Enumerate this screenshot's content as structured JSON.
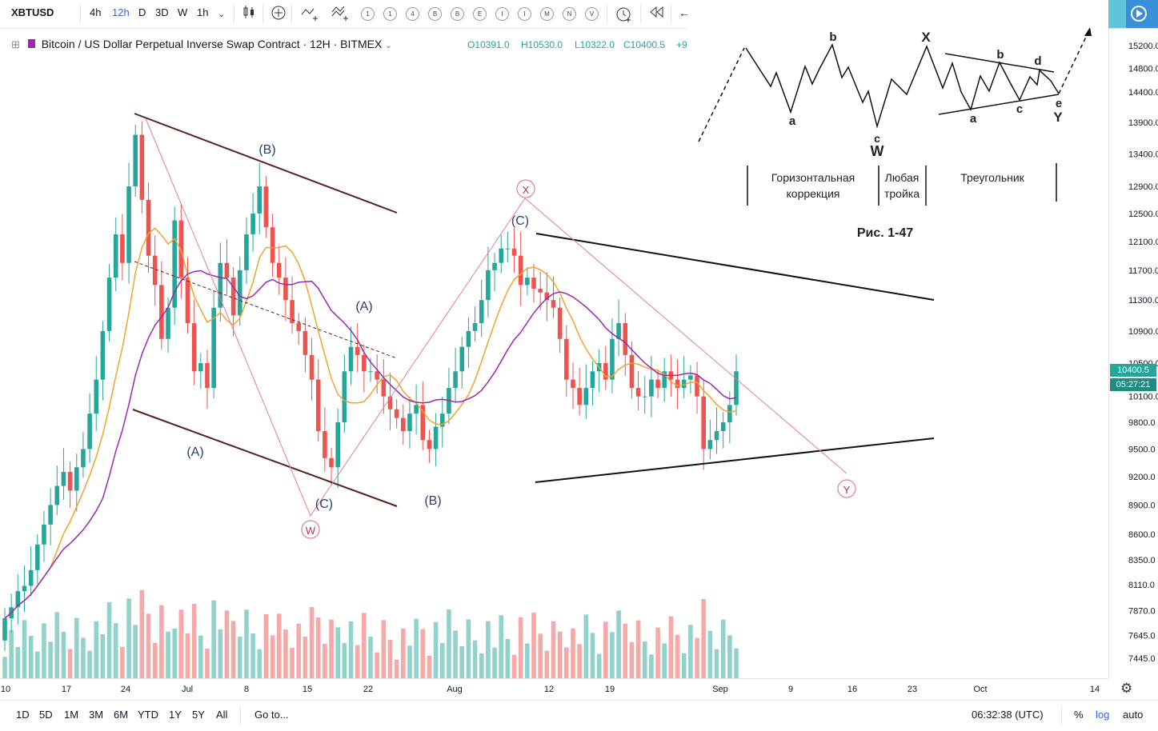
{
  "toolbar": {
    "symbol": "XBTUSD",
    "timeframes": [
      "4h",
      "12h",
      "D",
      "3D",
      "W",
      "1h"
    ],
    "active_timeframe": "12h",
    "pattern_buttons": [
      "1",
      "1",
      "4",
      "B",
      "B",
      "E",
      "I",
      "M",
      "N",
      "V"
    ],
    "icons": [
      "chevron-down-icon",
      "candles-icon",
      "add-indicator-icon",
      "compare-icon",
      "templates-icon",
      "alert-icon",
      "replay-icon",
      "back-icon",
      "play-icon"
    ]
  },
  "legend": {
    "title": "Bitcoin / US Dollar Perpetual Inverse Swap Contract · 12H · BITMEX",
    "open": "O10391.0",
    "high": "H10530.0",
    "low": "L10322.0",
    "close": "C10400.5",
    "change": "+9"
  },
  "price_badge": {
    "price": "10400.5",
    "countdown": "05:27:21"
  },
  "bottom": {
    "ranges": [
      "1D",
      "5D",
      "1M",
      "3M",
      "6M",
      "YTD",
      "1Y",
      "5Y",
      "All"
    ],
    "goto": "Go to...",
    "time": "06:32:38 (UTC)",
    "percent": "%",
    "log": "log",
    "auto": "auto"
  },
  "inset": {
    "labels_top": [
      "a",
      "b",
      "X",
      "b",
      "d",
      "c",
      "W",
      "a",
      "c",
      "e",
      "Y"
    ],
    "section1": [
      "Горизонтальная",
      "коррекция"
    ],
    "section2": [
      "Любая",
      "тройка"
    ],
    "section3": "Треугольник",
    "caption": "Рис. 1-47"
  },
  "annotations": [
    "(B)",
    "(A)",
    "(C)",
    "W",
    "(A)",
    "(B)",
    "(C)",
    "X",
    "Y"
  ],
  "colors": {
    "up": "#26a69a",
    "down": "#ef5350",
    "ma_fast": "#f0a22e",
    "ma_slow": "#9c27b0",
    "channel": "#5d1f1a",
    "pink": "#e47aa0"
  },
  "chart_data": {
    "type": "candlestick",
    "title": "Bitcoin / US Dollar Perpetual Inverse Swap Contract · 12H · BITMEX",
    "x_ticks": [
      "10",
      "17",
      "24",
      "Jul",
      "8",
      "15",
      "22",
      "Aug",
      "12",
      "19",
      "Sep",
      "9",
      "16",
      "23",
      "Oct",
      "14"
    ],
    "y_ticks": [
      15200,
      14800,
      14400,
      13900,
      13400,
      12900,
      12500,
      12100,
      11700,
      11300,
      10900,
      10500,
      10100,
      9800,
      9500,
      9200,
      8900,
      8600,
      8350,
      8110,
      7870,
      7645,
      7445
    ],
    "y_scale": "log",
    "closes": [
      7800,
      7900,
      8050,
      8100,
      8250,
      8500,
      8700,
      8900,
      9100,
      9250,
      9050,
      9300,
      9500,
      9900,
      10300,
      10900,
      11600,
      12200,
      11800,
      12900,
      13700,
      12700,
      11900,
      11500,
      10800,
      11200,
      12400,
      11600,
      11000,
      10400,
      10500,
      10200,
      11200,
      11800,
      11600,
      11100,
      11700,
      12200,
      12500,
      12900,
      12300,
      11800,
      11600,
      11300,
      11000,
      10900,
      10600,
      10300,
      9700,
      9400,
      9300,
      9800,
      10400,
      10700,
      10600,
      10400,
      10400,
      10300,
      10100,
      9950,
      9850,
      9700,
      9900,
      10000,
      9600,
      9500,
      9750,
      9900,
      10200,
      10400,
      10700,
      10900,
      11000,
      11300,
      11700,
      11800,
      12000,
      12000,
      11900,
      11500,
      11600,
      11450,
      11400,
      11300,
      11200,
      10800,
      10300,
      10200,
      10000,
      10200,
      10400,
      10500,
      10300,
      10800,
      11000,
      10600,
      10200,
      10100,
      10100,
      10300,
      10200,
      10400,
      10300,
      10200,
      10300,
      10350,
      10100,
      9500,
      9600,
      9700,
      9800,
      10000,
      10400
    ]
  }
}
